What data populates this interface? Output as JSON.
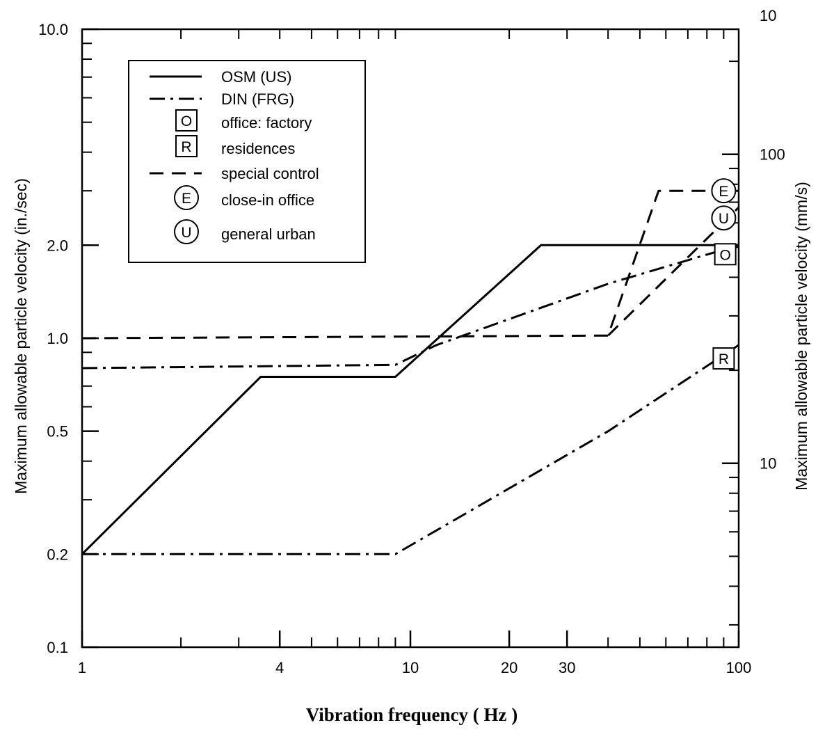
{
  "chart_data": {
    "type": "line",
    "xlabel": "Vibration frequency ( Hz )",
    "ylabel": "Maximum allowable particle velocity (in./sec)",
    "ylabel_right": "Maximum allowable particle velocity (mm/s)",
    "x_scale": "log",
    "y_scale": "log",
    "xlim": [
      1,
      100
    ],
    "ylim": [
      0.1,
      10.0
    ],
    "x_ticks": [
      {
        "value": 1,
        "label": "1"
      },
      {
        "value": 4,
        "label": "4"
      },
      {
        "value": 10,
        "label": "10"
      },
      {
        "value": 20,
        "label": "20"
      },
      {
        "value": 30,
        "label": "30"
      },
      {
        "value": 100,
        "label": "100"
      }
    ],
    "y_ticks": [
      {
        "value": 0.1,
        "label": "0.1"
      },
      {
        "value": 0.2,
        "label": "0.2"
      },
      {
        "value": 0.5,
        "label": "0.5"
      },
      {
        "value": 1.0,
        "label": "1.0"
      },
      {
        "value": 2.0,
        "label": "2.0"
      },
      {
        "value": 10.0,
        "label": "10.0"
      }
    ],
    "y_right_ticks": [
      {
        "value": 10,
        "label": "10"
      },
      {
        "value": 100,
        "label": "100"
      },
      {
        "value": 10,
        "label": "10",
        "at_top": true
      }
    ],
    "grid": false,
    "legend_position": "top-left",
    "legend": [
      {
        "key": "osm",
        "label": "OSM (US)",
        "style": "solid"
      },
      {
        "key": "din",
        "label": "DIN (FRG)",
        "style": "dashdot"
      },
      {
        "key": "O",
        "label": "office: factory",
        "symbol": "O",
        "shape": "square"
      },
      {
        "key": "R",
        "label": "residences",
        "symbol": "R",
        "shape": "square"
      },
      {
        "key": "special",
        "label": "special control",
        "style": "dashed"
      },
      {
        "key": "E",
        "label": "close-in office",
        "symbol": "E",
        "shape": "circle"
      },
      {
        "key": "U",
        "label": "general urban",
        "symbol": "U",
        "shape": "circle"
      }
    ],
    "series": [
      {
        "key": "osm",
        "style": "solid",
        "points": [
          [
            1,
            0.2
          ],
          [
            3.5,
            0.75
          ],
          [
            9,
            0.75
          ],
          [
            25,
            2.0
          ],
          [
            100,
            2.0
          ]
        ]
      },
      {
        "key": "din",
        "marker": "O",
        "style": "dashdot",
        "points": [
          [
            1,
            0.8
          ],
          [
            9,
            0.82
          ],
          [
            12,
            0.95
          ],
          [
            40,
            1.5
          ],
          [
            100,
            2.0
          ]
        ]
      },
      {
        "key": "din",
        "marker": "R",
        "style": "dashdot",
        "points": [
          [
            1,
            0.2
          ],
          [
            9,
            0.2
          ],
          [
            40,
            0.5
          ],
          [
            100,
            0.95
          ]
        ]
      },
      {
        "key": "special",
        "marker": "E",
        "style": "dashed",
        "points": [
          [
            1,
            1.0
          ],
          [
            40,
            1.02
          ],
          [
            57,
            3.0
          ],
          [
            100,
            3.0
          ]
        ]
      },
      {
        "key": "special",
        "marker": "U",
        "style": "dashed",
        "points": [
          [
            40,
            1.02
          ],
          [
            100,
            2.65
          ]
        ]
      }
    ],
    "markers": [
      {
        "symbol": "E",
        "shape": "circle",
        "x": 90,
        "y": 3.0
      },
      {
        "symbol": "U",
        "shape": "circle",
        "x": 90,
        "y": 2.45
      },
      {
        "symbol": "O",
        "shape": "square",
        "x": 91,
        "y": 1.87
      },
      {
        "symbol": "R",
        "shape": "square",
        "x": 90,
        "y": 0.86
      }
    ]
  }
}
